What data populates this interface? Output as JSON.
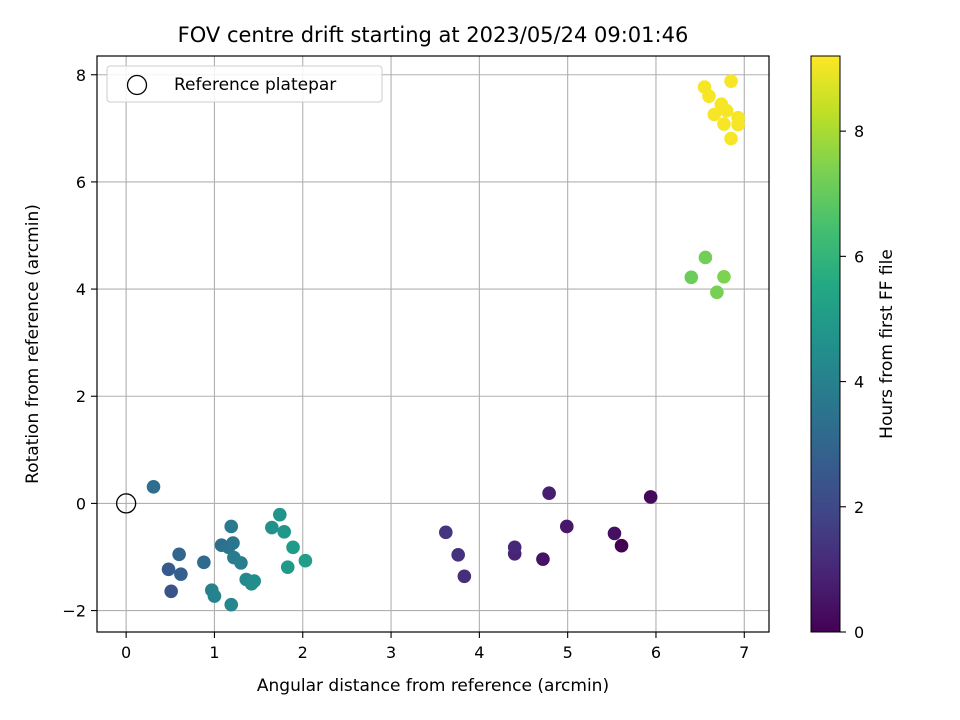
{
  "chart_data": {
    "type": "scatter",
    "title": "FOV centre drift starting at 2023/05/24 09:01:46",
    "xlabel": "Angular distance from reference (arcmin)",
    "ylabel": "Rotation from reference (arcmin)",
    "xlim": [
      -0.33,
      7.28
    ],
    "ylim": [
      -2.4,
      8.35
    ],
    "xticks": [
      0,
      1,
      2,
      3,
      4,
      5,
      6,
      7
    ],
    "yticks": [
      -2,
      0,
      2,
      4,
      6,
      8
    ],
    "xtick_labels": [
      "0",
      "1",
      "2",
      "3",
      "4",
      "5",
      "6",
      "7"
    ],
    "ytick_labels": [
      "−2",
      "0",
      "2",
      "4",
      "6",
      "8"
    ],
    "grid": true,
    "legend": {
      "position": "top-left",
      "entries": [
        {
          "label": "Reference platepar",
          "marker": "open-circle",
          "color": "#000000"
        }
      ]
    },
    "reference_point": {
      "x": 0,
      "y": 0
    },
    "colorbar": {
      "label": "Hours from first FF file",
      "colormap": "viridis",
      "range": [
        0,
        9.2
      ],
      "ticks": [
        0,
        2,
        4,
        6,
        8
      ],
      "tick_labels": [
        "0",
        "2",
        "4",
        "6",
        "8"
      ]
    },
    "points": [
      {
        "x": 5.61,
        "y": -0.79,
        "c": 0.0
      },
      {
        "x": 5.94,
        "y": 0.12,
        "c": 0.2
      },
      {
        "x": 5.53,
        "y": -0.56,
        "c": 0.4
      },
      {
        "x": 4.72,
        "y": -1.04,
        "c": 0.5
      },
      {
        "x": 4.99,
        "y": -0.43,
        "c": 0.6
      },
      {
        "x": 4.79,
        "y": 0.19,
        "c": 0.8
      },
      {
        "x": 4.4,
        "y": -0.94,
        "c": 0.9
      },
      {
        "x": 4.4,
        "y": -0.82,
        "c": 1.0
      },
      {
        "x": 3.83,
        "y": -1.36,
        "c": 1.2
      },
      {
        "x": 3.76,
        "y": -0.96,
        "c": 1.3
      },
      {
        "x": 3.62,
        "y": -0.54,
        "c": 1.4
      },
      {
        "x": 0.51,
        "y": -1.64,
        "c": 2.4
      },
      {
        "x": 0.48,
        "y": -1.23,
        "c": 2.6
      },
      {
        "x": 0.62,
        "y": -1.32,
        "c": 2.8
      },
      {
        "x": 0.6,
        "y": -0.95,
        "c": 3.0
      },
      {
        "x": 0.88,
        "y": -1.1,
        "c": 3.2
      },
      {
        "x": 0.31,
        "y": 0.31,
        "c": 3.3
      },
      {
        "x": 1.08,
        "y": -0.78,
        "c": 3.4
      },
      {
        "x": 1.16,
        "y": -0.82,
        "c": 3.5
      },
      {
        "x": 1.21,
        "y": -0.74,
        "c": 3.6
      },
      {
        "x": 1.19,
        "y": -0.43,
        "c": 3.7
      },
      {
        "x": 1.22,
        "y": -1.01,
        "c": 3.8
      },
      {
        "x": 1.3,
        "y": -1.11,
        "c": 3.9
      },
      {
        "x": 0.97,
        "y": -1.62,
        "c": 4.0
      },
      {
        "x": 1.0,
        "y": -1.73,
        "c": 4.1
      },
      {
        "x": 1.19,
        "y": -1.89,
        "c": 4.2
      },
      {
        "x": 1.36,
        "y": -1.42,
        "c": 4.3
      },
      {
        "x": 1.42,
        "y": -1.5,
        "c": 4.4
      },
      {
        "x": 1.45,
        "y": -1.45,
        "c": 4.5
      },
      {
        "x": 1.65,
        "y": -0.45,
        "c": 4.6
      },
      {
        "x": 1.74,
        "y": -0.21,
        "c": 4.7
      },
      {
        "x": 1.79,
        "y": -0.53,
        "c": 4.8
      },
      {
        "x": 1.83,
        "y": -1.19,
        "c": 4.9
      },
      {
        "x": 1.89,
        "y": -0.82,
        "c": 5.0
      },
      {
        "x": 2.03,
        "y": -1.07,
        "c": 5.1
      },
      {
        "x": 6.4,
        "y": 4.22,
        "c": 7.1
      },
      {
        "x": 6.56,
        "y": 4.59,
        "c": 7.2
      },
      {
        "x": 6.69,
        "y": 3.94,
        "c": 7.3
      },
      {
        "x": 6.77,
        "y": 4.23,
        "c": 7.4
      },
      {
        "x": 6.55,
        "y": 7.77,
        "c": 9.1
      },
      {
        "x": 6.6,
        "y": 7.6,
        "c": 9.1
      },
      {
        "x": 6.66,
        "y": 7.26,
        "c": 9.1
      },
      {
        "x": 6.74,
        "y": 7.45,
        "c": 9.1
      },
      {
        "x": 6.77,
        "y": 7.08,
        "c": 9.1
      },
      {
        "x": 6.8,
        "y": 7.33,
        "c": 9.1
      },
      {
        "x": 6.85,
        "y": 7.88,
        "c": 9.1
      },
      {
        "x": 6.85,
        "y": 6.81,
        "c": 9.1
      },
      {
        "x": 6.93,
        "y": 7.07,
        "c": 9.1
      },
      {
        "x": 6.93,
        "y": 7.2,
        "c": 9.1
      }
    ]
  }
}
